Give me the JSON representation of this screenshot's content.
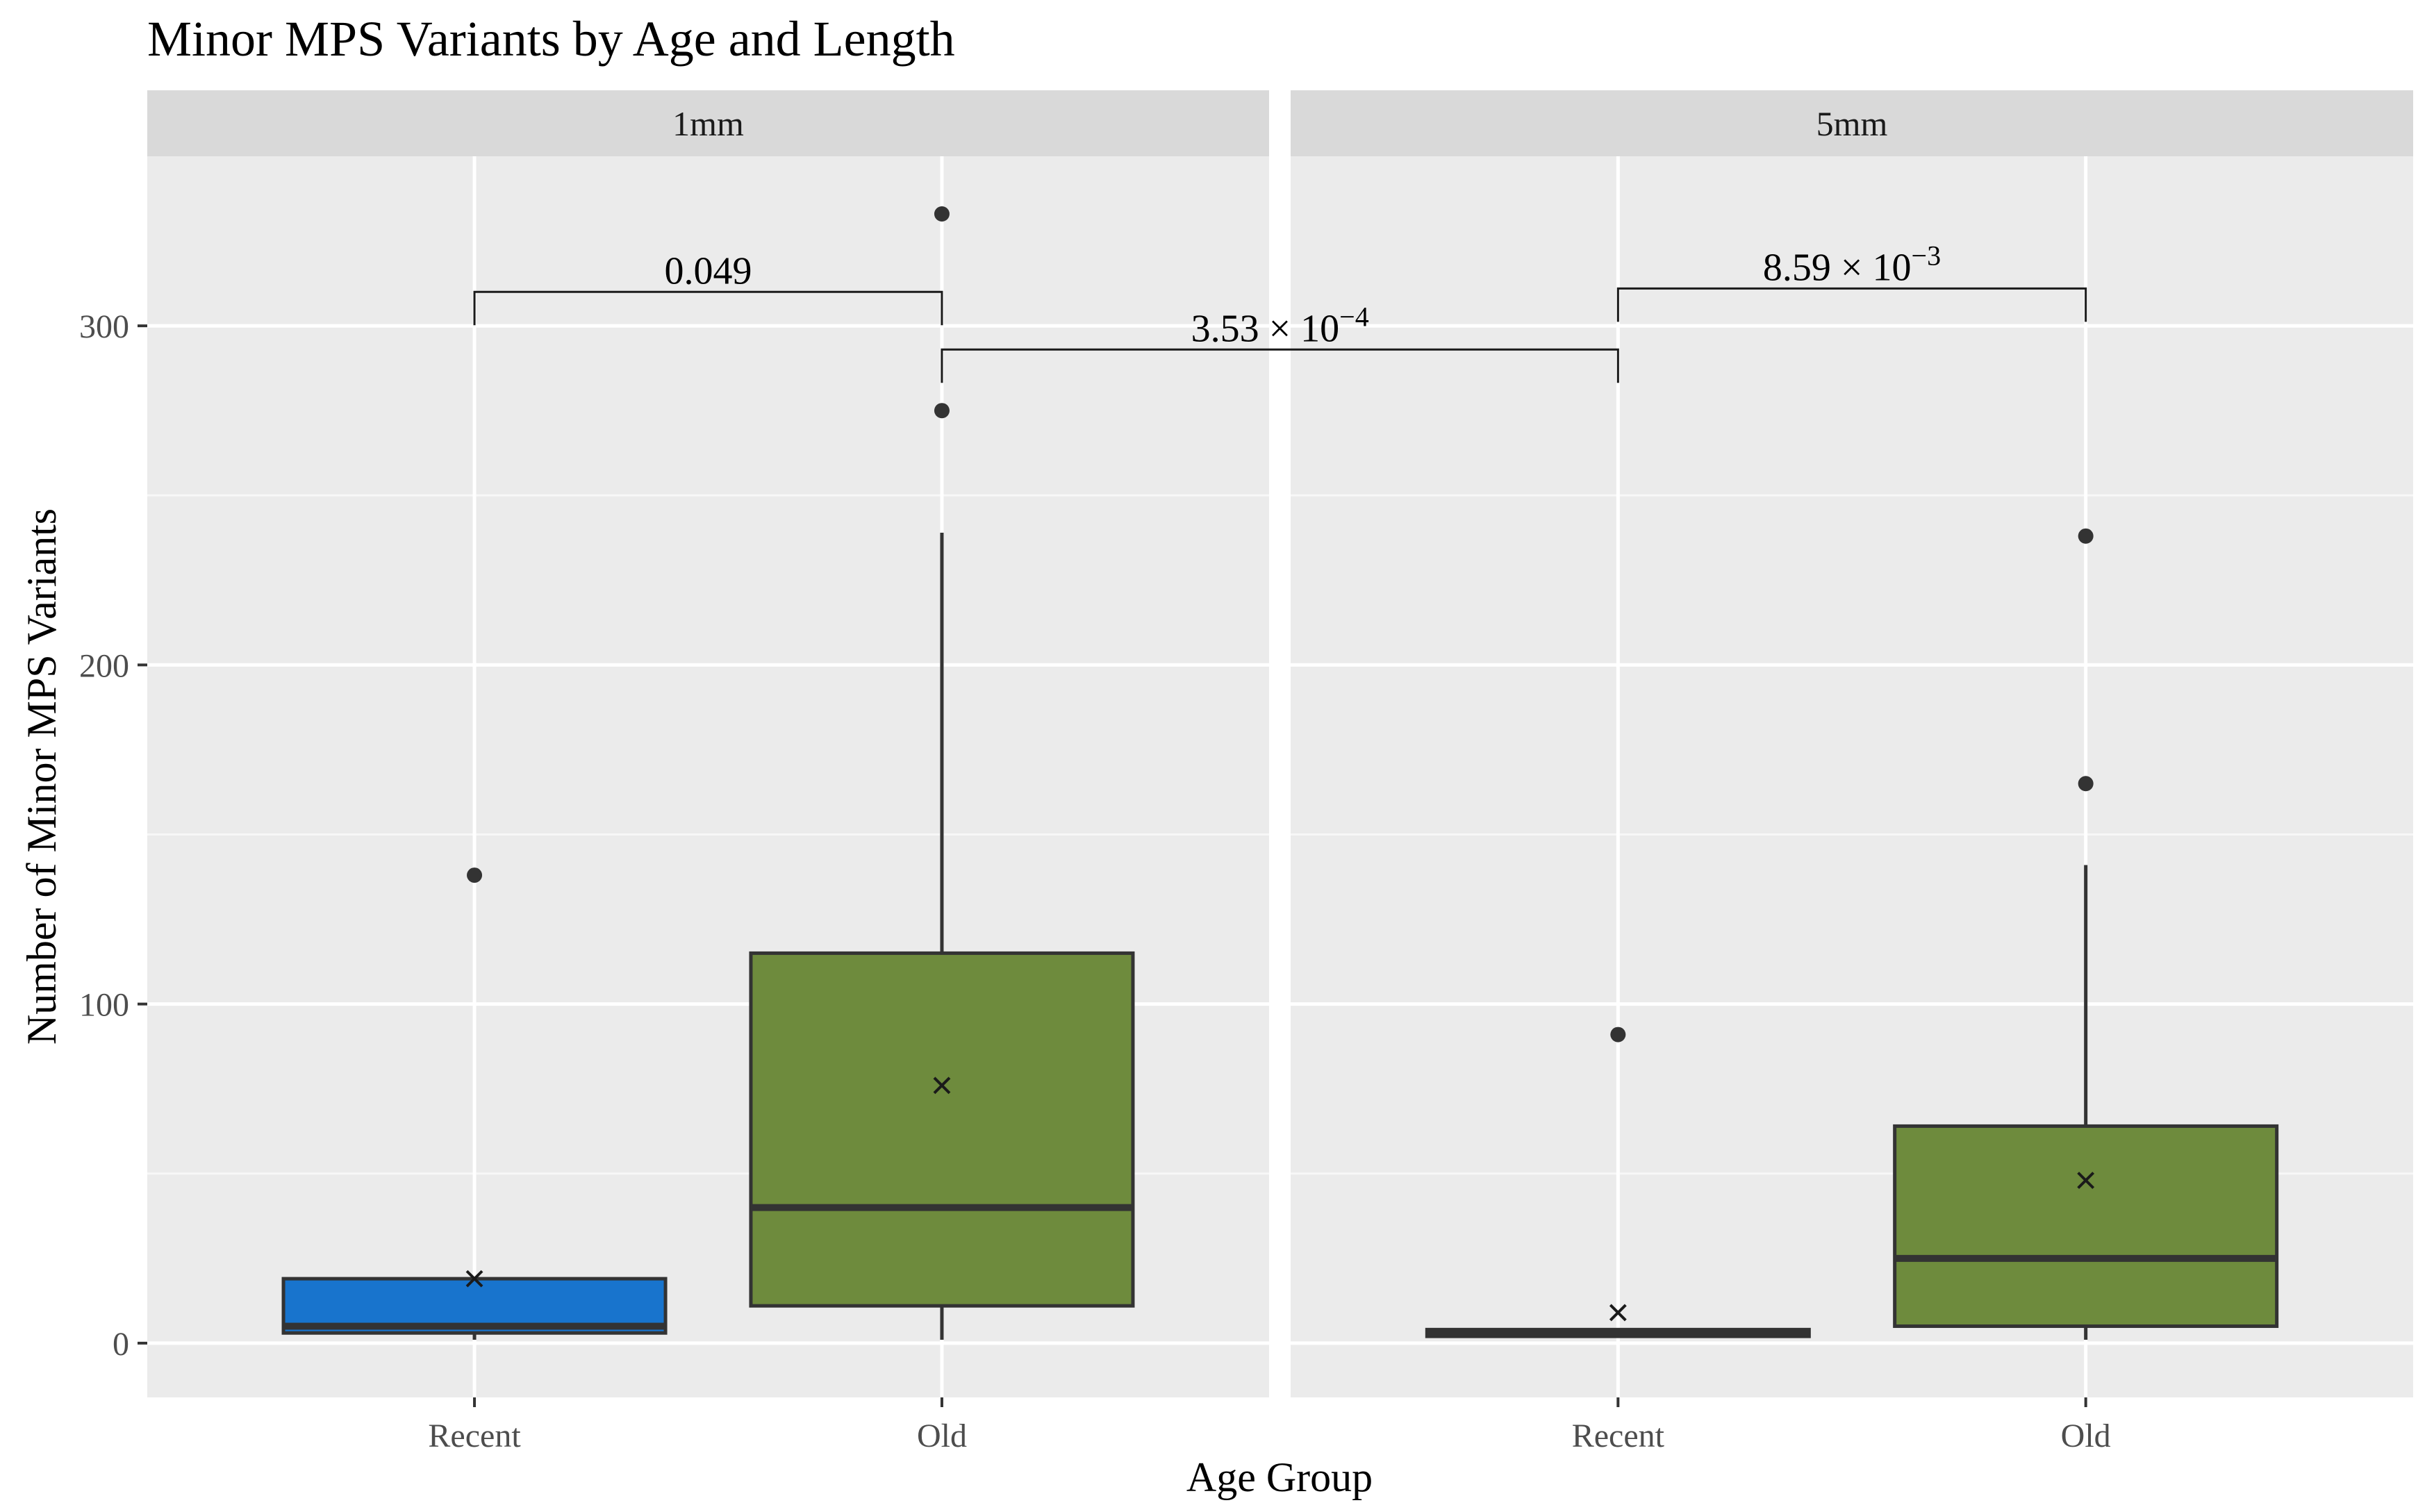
{
  "chart_data": {
    "type": "boxplot",
    "title": "Minor MPS Variants by Age and Length",
    "xlabel": "Age Group",
    "ylabel": "Number of Minor MPS Variants",
    "ylim": [
      -16,
      350
    ],
    "yticks": [
      0,
      100,
      200,
      300
    ],
    "grid": true,
    "legend": "none",
    "categories": [
      "Recent",
      "Old"
    ],
    "colors": {
      "Recent": "#1874cd",
      "Old": "#6e8b3d"
    },
    "panels": [
      {
        "name": "1mm",
        "boxes": [
          {
            "group": "Recent",
            "min": 1,
            "q1": 3,
            "median": 5,
            "q3": 19,
            "max": 19,
            "mean": 19,
            "outliers": [
              138
            ]
          },
          {
            "group": "Old",
            "min": 1,
            "q1": 11,
            "median": 40,
            "q3": 115,
            "max": 239,
            "mean": 76,
            "outliers": [
              275,
              333
            ]
          }
        ]
      },
      {
        "name": "5mm",
        "boxes": [
          {
            "group": "Recent",
            "min": 2,
            "q1": 2,
            "median": 3,
            "q3": 4,
            "max": 4,
            "mean": 9,
            "outliers": [
              91
            ]
          },
          {
            "group": "Old",
            "min": 1,
            "q1": 5,
            "median": 25,
            "q3": 64,
            "max": 141,
            "mean": 48,
            "outliers": [
              165,
              238
            ]
          }
        ]
      }
    ],
    "annotations": [
      {
        "label": "0.049",
        "from": {
          "panel": 0,
          "group": "Recent"
        },
        "to": {
          "panel": 0,
          "group": "Old"
        },
        "y": 310
      },
      {
        "label": "3.53 × 10",
        "exponent": "−4",
        "from": {
          "panel": 0,
          "group": "Old"
        },
        "to": {
          "panel": 1,
          "group": "Recent"
        },
        "y": 293
      },
      {
        "label": "8.59 × 10",
        "exponent": "−3",
        "from": {
          "panel": 1,
          "group": "Recent"
        },
        "to": {
          "panel": 1,
          "group": "Old"
        },
        "y": 311
      }
    ]
  }
}
